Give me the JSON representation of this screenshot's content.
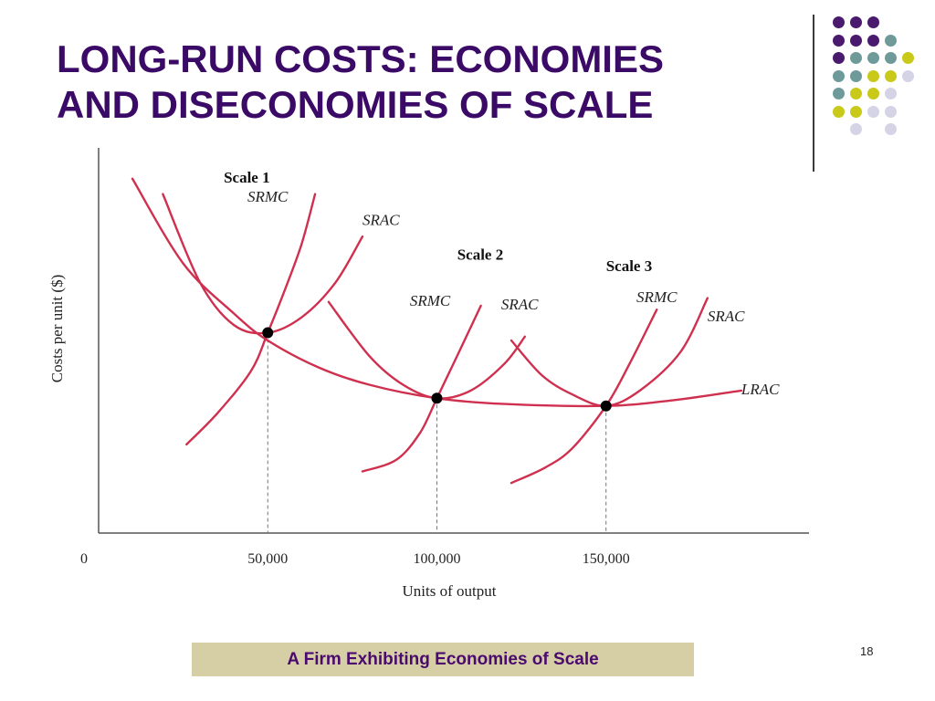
{
  "slide": {
    "title_line1": "LONG-RUN COSTS: ECONOMIES",
    "title_line2": "AND DISECONOMIES OF SCALE",
    "caption": "A Firm Exhibiting Economies of Scale",
    "page_number": "18"
  },
  "colors": {
    "title": "#3b0a66",
    "curve": "#d0304f",
    "axis": "#555555",
    "caption_bg": "#d6cfa6",
    "caption_text": "#4a0a6e",
    "dot_purple": "#4a1a6e",
    "dot_teal": "#6e9a9a",
    "dot_yellow": "#c9c91a",
    "dot_lavender": "#d4d4e6"
  },
  "decoration": {
    "dot_grid": [
      [
        "purple",
        "purple",
        "purple",
        "",
        "",
        ""
      ],
      [
        "purple",
        "purple",
        "purple",
        "teal",
        "",
        ""
      ],
      [
        "purple",
        "teal",
        "teal",
        "teal",
        "yellow",
        ""
      ],
      [
        "teal",
        "teal",
        "yellow",
        "yellow",
        "lavender",
        ""
      ],
      [
        "teal",
        "yellow",
        "yellow",
        "lavender",
        "",
        ""
      ],
      [
        "yellow",
        "yellow",
        "lavender",
        "lavender",
        "",
        ""
      ],
      [
        "",
        "lavender",
        "",
        "lavender",
        "",
        ""
      ]
    ]
  },
  "chart_data": {
    "type": "line",
    "xlabel": "Units of output",
    "ylabel": "Costs per unit ($)",
    "xlim": [
      0,
      210000
    ],
    "ylim": [
      0,
      100
    ],
    "x_ticks": [
      {
        "value": 0,
        "label": "0"
      },
      {
        "value": 50000,
        "label": "50,000"
      },
      {
        "value": 100000,
        "label": "100,000"
      },
      {
        "value": 150000,
        "label": "150,000"
      }
    ],
    "scale_labels": [
      {
        "text": "Scale 1",
        "x": 37000,
        "y": 91
      },
      {
        "text": "Scale 2",
        "x": 106000,
        "y": 71
      },
      {
        "text": "Scale 3",
        "x": 150000,
        "y": 68
      }
    ],
    "series": [
      {
        "name": "LRAC",
        "label_x": 190000,
        "label_y": 36,
        "points": [
          [
            10000,
            92
          ],
          [
            25000,
            70
          ],
          [
            40000,
            57
          ],
          [
            50000,
            50
          ],
          [
            65000,
            43
          ],
          [
            80000,
            38.5
          ],
          [
            100000,
            35
          ],
          [
            120000,
            33.5
          ],
          [
            150000,
            33
          ],
          [
            170000,
            34.5
          ],
          [
            190000,
            37
          ]
        ]
      },
      {
        "name": "SRAC",
        "label_x": 78000,
        "label_y": 80,
        "points": [
          [
            19000,
            88
          ],
          [
            30000,
            65
          ],
          [
            40000,
            54
          ],
          [
            50000,
            52
          ],
          [
            60000,
            56
          ],
          [
            70000,
            65
          ],
          [
            78000,
            77
          ]
        ]
      },
      {
        "name": "SRMC",
        "label_x": 44000,
        "label_y": 86,
        "points": [
          [
            26000,
            23
          ],
          [
            35000,
            31
          ],
          [
            45000,
            42
          ],
          [
            50000,
            52
          ],
          [
            55000,
            63
          ],
          [
            60000,
            75
          ],
          [
            64000,
            88
          ]
        ]
      },
      {
        "name": "SRAC",
        "label_x": 119000,
        "label_y": 58,
        "points": [
          [
            68000,
            60
          ],
          [
            80000,
            46
          ],
          [
            90000,
            38.5
          ],
          [
            100000,
            35
          ],
          [
            110000,
            37
          ],
          [
            120000,
            44
          ],
          [
            126000,
            51
          ]
        ]
      },
      {
        "name": "SRMC",
        "label_x": 92000,
        "label_y": 59,
        "points": [
          [
            78000,
            16
          ],
          [
            88000,
            19
          ],
          [
            95000,
            26
          ],
          [
            100000,
            35
          ],
          [
            106000,
            46
          ],
          [
            113000,
            59
          ]
        ]
      },
      {
        "name": "SRAC",
        "label_x": 180000,
        "label_y": 55,
        "points": [
          [
            122000,
            50
          ],
          [
            131000,
            41
          ],
          [
            140000,
            36
          ],
          [
            150000,
            33
          ],
          [
            160000,
            37
          ],
          [
            172000,
            47
          ],
          [
            180000,
            61
          ]
        ]
      },
      {
        "name": "SRMC",
        "label_x": 159000,
        "label_y": 60,
        "points": [
          [
            122000,
            13
          ],
          [
            132000,
            17
          ],
          [
            140000,
            22
          ],
          [
            150000,
            33
          ],
          [
            157000,
            44
          ],
          [
            165000,
            58
          ]
        ]
      }
    ],
    "minimum_points": [
      {
        "x": 50000,
        "y": 52
      },
      {
        "x": 100000,
        "y": 35
      },
      {
        "x": 150000,
        "y": 33
      }
    ],
    "grid": false,
    "legend": "none"
  }
}
